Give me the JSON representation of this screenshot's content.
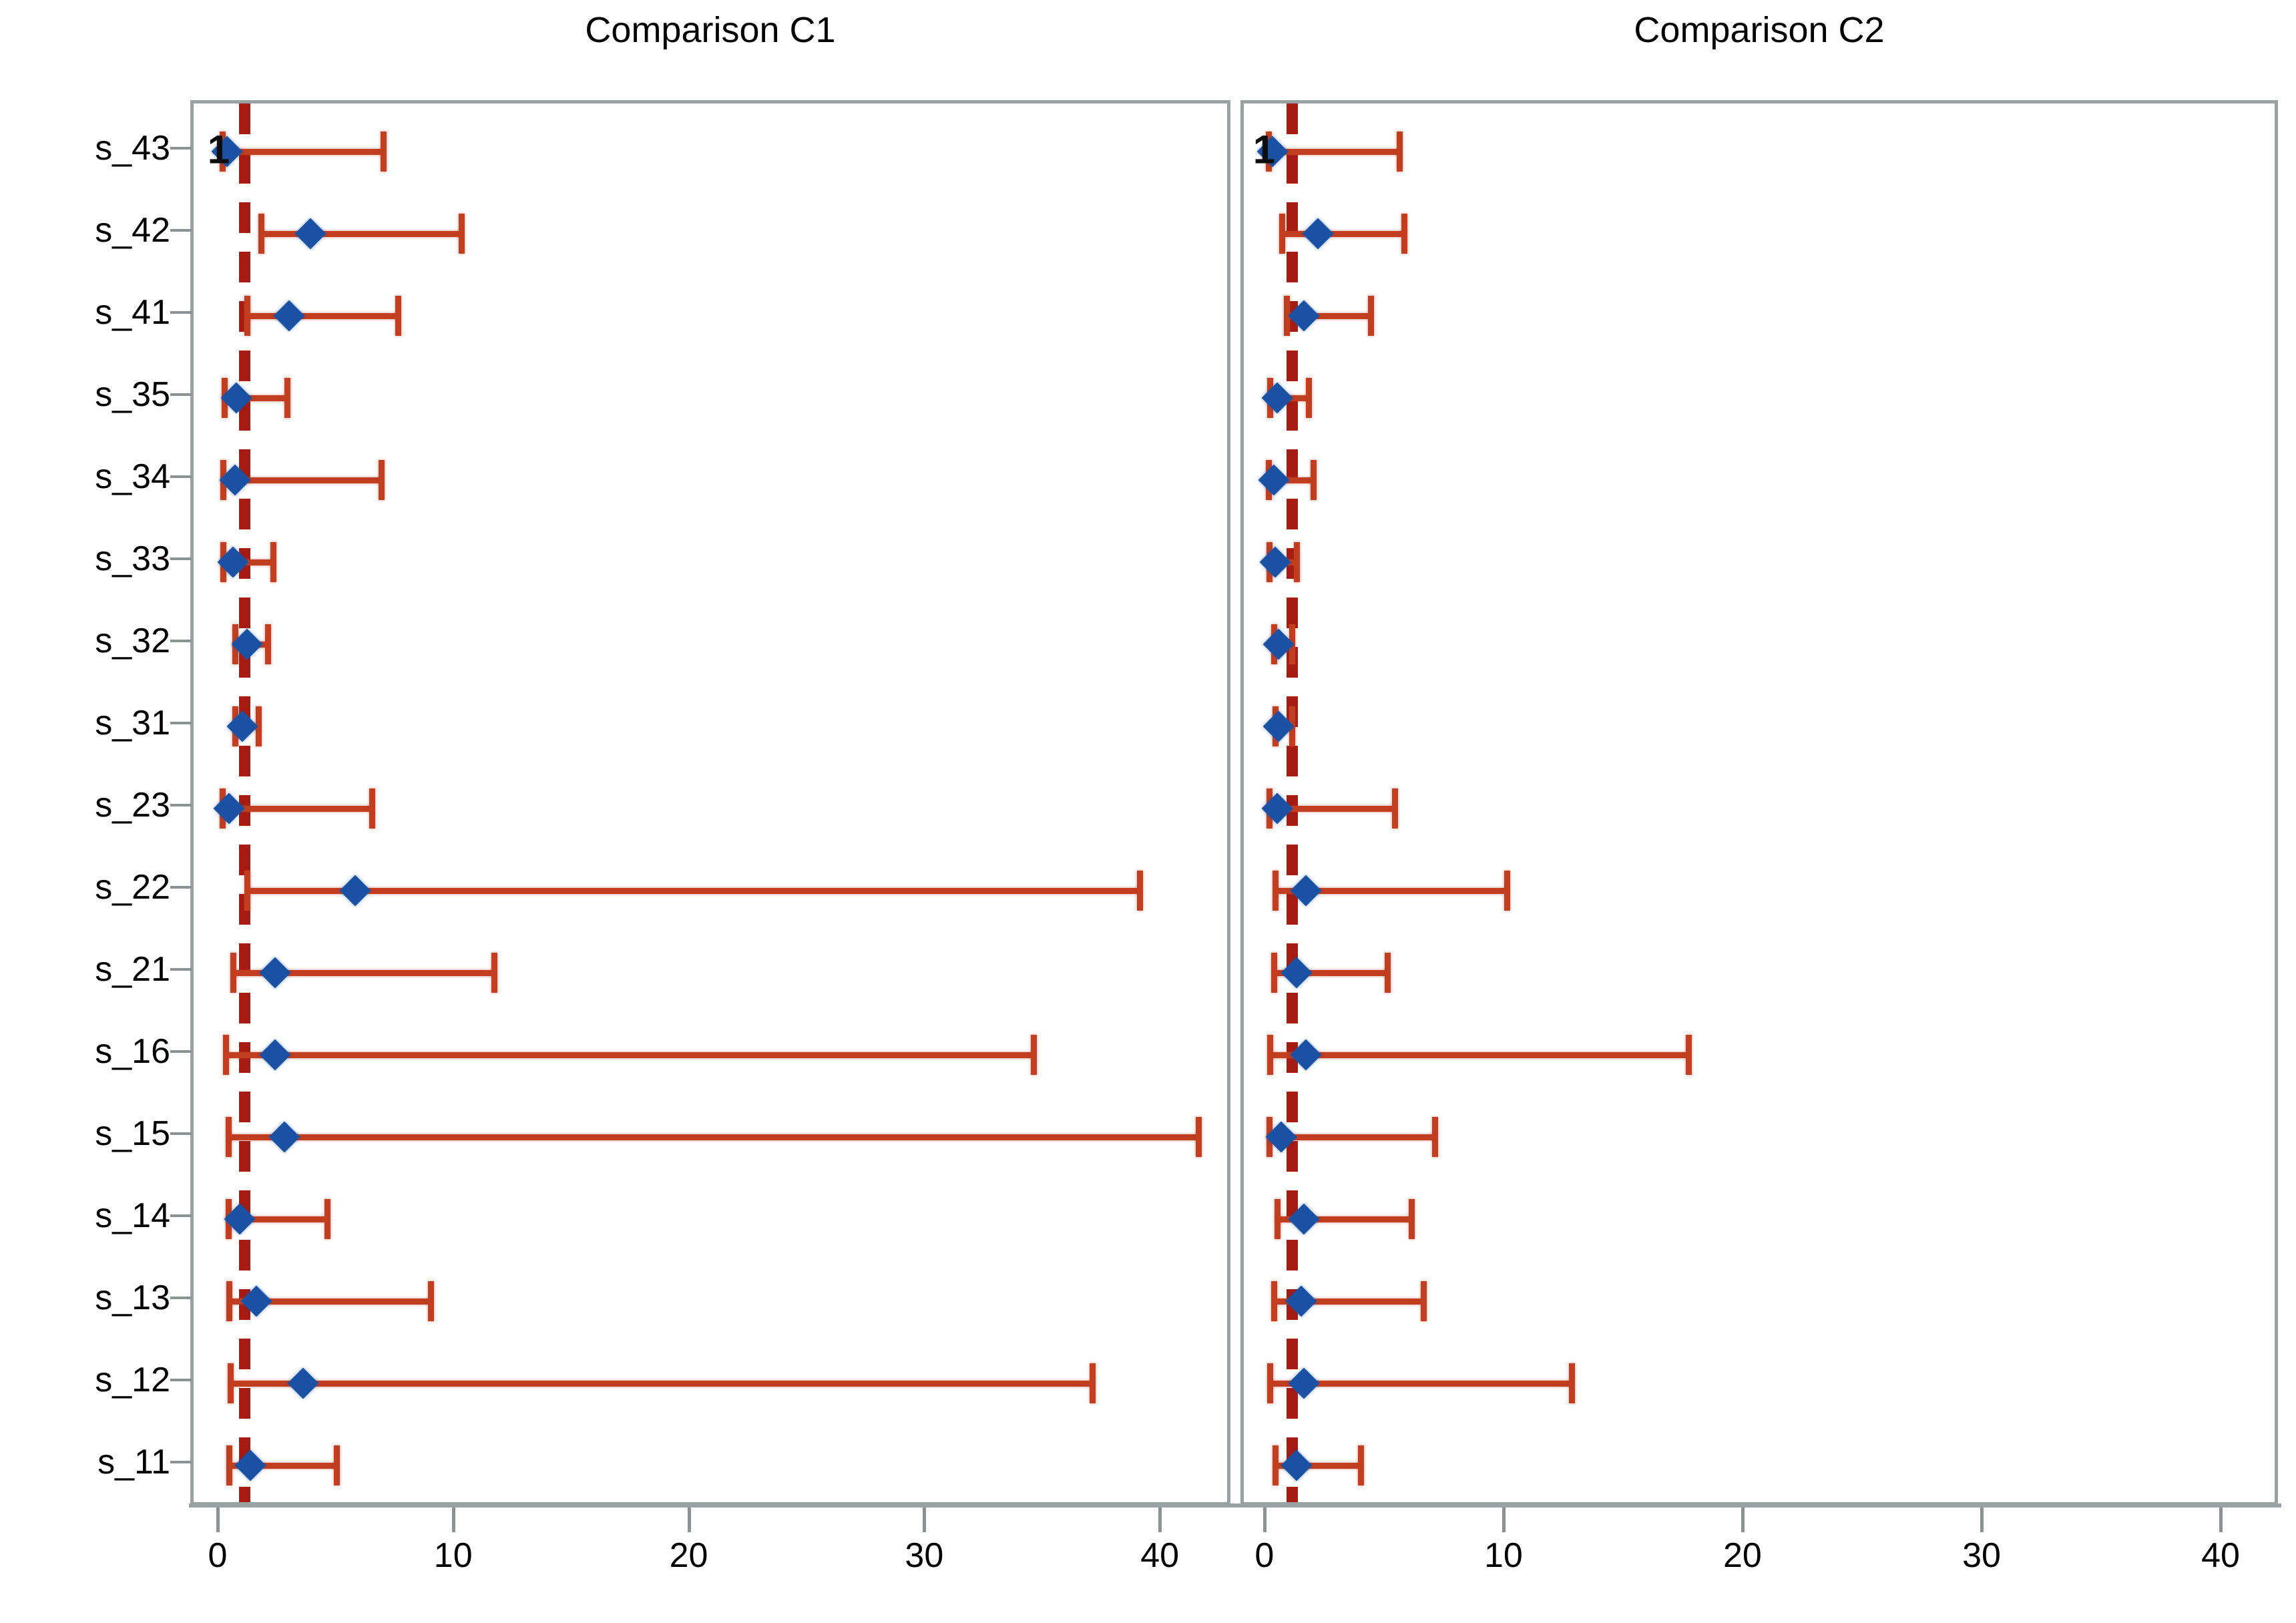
{
  "chart_data": {
    "type": "scatter",
    "subtype": "forest-plot",
    "grid": false,
    "legend": false,
    "reference_line_x": 1,
    "x_ticks": [
      0,
      10,
      20,
      30,
      40
    ],
    "categories": [
      "s_43",
      "s_42",
      "s_41",
      "s_35",
      "s_34",
      "s_33",
      "s_32",
      "s_31",
      "s_23",
      "s_22",
      "s_21",
      "s_16",
      "s_15",
      "s_14",
      "s_13",
      "s_12",
      "s_11"
    ],
    "panels": [
      {
        "id": "c1",
        "title": "Comparison C1",
        "xlim": [
          -1.16,
          43.0
        ],
        "estimates": [
          0.25,
          3.8,
          2.9,
          0.65,
          0.6,
          0.5,
          1.1,
          0.9,
          0.35,
          5.7,
          2.3,
          2.3,
          2.7,
          0.8,
          1.5,
          3.5,
          1.25
        ],
        "ci_low": [
          0.05,
          1.7,
          1.1,
          0.15,
          0.1,
          0.1,
          0.6,
          0.6,
          0.05,
          1.1,
          0.5,
          0.2,
          0.3,
          0.3,
          0.35,
          0.4,
          0.35
        ],
        "ci_high": [
          6.9,
          10.2,
          7.5,
          2.8,
          6.8,
          2.2,
          2.0,
          1.6,
          6.4,
          39.0,
          11.6,
          34.5,
          41.5,
          4.5,
          8.9,
          37.0,
          4.9
        ],
        "black_marker": {
          "row_index": 0,
          "glyph": "1",
          "value": -0.1
        }
      },
      {
        "id": "c2",
        "title": "Comparison C2",
        "xlim": [
          -1.0,
          42.4
        ],
        "estimates": [
          0.2,
          2.1,
          1.5,
          0.4,
          0.25,
          0.3,
          0.45,
          0.45,
          0.4,
          1.6,
          1.2,
          1.6,
          0.55,
          1.5,
          1.4,
          1.5,
          1.2
        ],
        "ci_low": [
          0.03,
          0.6,
          0.8,
          0.1,
          0.03,
          0.05,
          0.25,
          0.3,
          0.05,
          0.3,
          0.25,
          0.1,
          0.05,
          0.4,
          0.25,
          0.1,
          0.3
        ],
        "ci_high": [
          5.5,
          5.7,
          4.3,
          1.7,
          1.9,
          1.2,
          1.0,
          1.0,
          5.3,
          10.0,
          5.0,
          17.6,
          7.0,
          6.0,
          6.5,
          12.7,
          3.9
        ],
        "black_marker": {
          "row_index": 0,
          "glyph": "1",
          "value": -0.15
        }
      }
    ],
    "colors": {
      "ci_bar": "#c13e20",
      "reference_line": "#a61b12",
      "point_estimate": "#1a51a2",
      "axis": "#99a1a3",
      "text": "#000000"
    }
  }
}
